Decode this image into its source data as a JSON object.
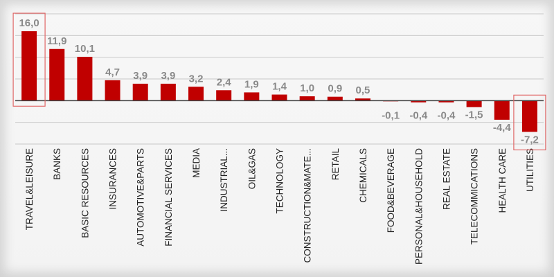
{
  "chart_data": {
    "type": "bar",
    "categories": [
      "TRAVEL&LEISURE",
      "BANKS",
      "BASIC RESOURCES",
      "INSURANCES",
      "AUTOMOTIVE&PARTS",
      "FINANCIAL SERVICES",
      "MEDIA",
      "INDUSTRIAL...",
      "OIL&GAS",
      "TECHNOLOGY",
      "CONSTRUCTION&MATE...",
      "RETAIL",
      "CHEMICALS",
      "FOOD&BEVERAGE",
      "PERSONAL&HOUSEHOLD",
      "REAL ESTATE",
      "TELECOMMICATIONS",
      "HEALTH CARE",
      "UTILITIES"
    ],
    "values": [
      16.0,
      11.9,
      10.1,
      4.7,
      3.9,
      3.9,
      3.2,
      2.4,
      1.9,
      1.4,
      1.0,
      0.9,
      0.5,
      -0.1,
      -0.4,
      -0.4,
      -1.5,
      -4.4,
      -7.2
    ],
    "value_labels": [
      "16,0",
      "11,9",
      "10,1",
      "4,7",
      "3,9",
      "3,9",
      "3,2",
      "2,4",
      "1,9",
      "1,4",
      "1,0",
      "0,9",
      "0,5",
      "-0,1",
      "-0,4",
      "-0,4",
      "-1,5",
      "-4,4",
      "-7,2"
    ],
    "highlighted": [
      "TRAVEL&LEISURE",
      "UTILITIES"
    ],
    "ylim": [
      -10,
      20
    ],
    "grid": true,
    "colors": {
      "bar": "#c00000",
      "highlight_box": "#e06666",
      "gridline": "#c8c8c8",
      "zero_line": "#404040",
      "value_label": "#8a8a8a",
      "category_label": "#222222"
    }
  }
}
